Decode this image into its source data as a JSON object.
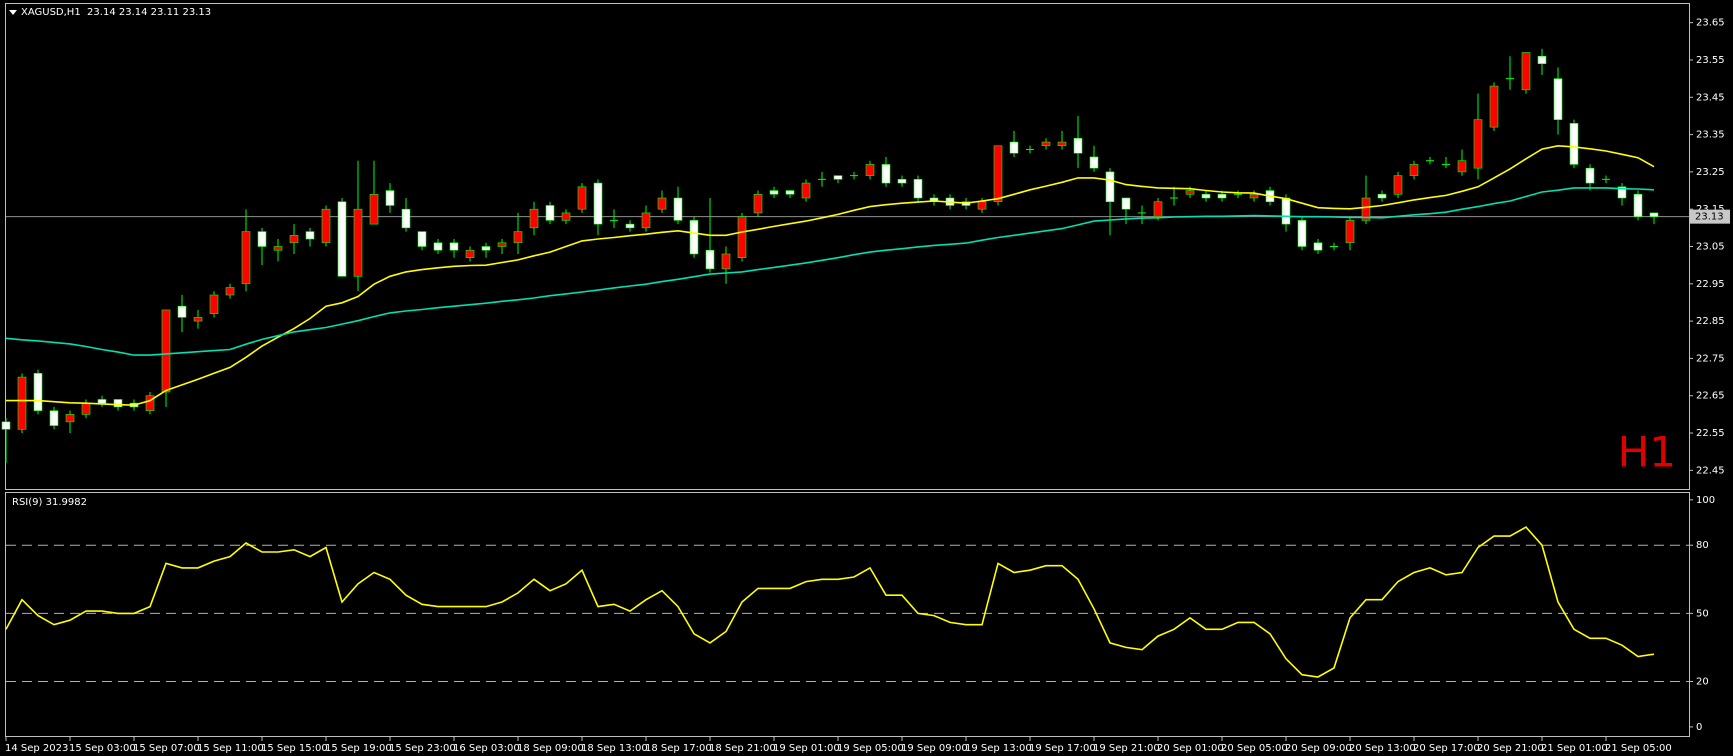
{
  "chart_data": [
    {
      "type": "candlestick",
      "title": "XAGUSD,H1  23.14 23.14 23.11 23.13",
      "annotation": "H1",
      "categories": [
        "14 Sep 2023",
        null,
        null,
        null,
        "15 Sep 03:00",
        null,
        null,
        null,
        "15 Sep 07:00",
        null,
        null,
        null,
        "15 Sep 11:00",
        null,
        null,
        null,
        "15 Sep 15:00",
        null,
        null,
        null,
        "15 Sep 19:00",
        null,
        null,
        null,
        "15 Sep 23:00",
        null,
        null,
        null,
        "16 Sep 03:00",
        null,
        null,
        null,
        "18 Sep 09:00",
        null,
        null,
        null,
        "18 Sep 13:00",
        null,
        null,
        null,
        "18 Sep 17:00",
        null,
        null,
        null,
        "18 Sep 21:00",
        null,
        null,
        null,
        "19 Sep 01:00",
        null,
        null,
        null,
        "19 Sep 05:00",
        null,
        null,
        null,
        "19 Sep 09:00",
        null,
        null,
        null,
        "19 Sep 13:00",
        null,
        null,
        null,
        "19 Sep 17:00",
        null,
        null,
        null,
        "19 Sep 21:00",
        null,
        null,
        null,
        "20 Sep 01:00",
        null,
        null,
        null,
        "20 Sep 05:00",
        null,
        null,
        null,
        "20 Sep 09:00",
        null,
        null,
        null,
        "20 Sep 13:00",
        null,
        null,
        null,
        "20 Sep 17:00",
        null,
        null,
        null,
        "20 Sep 21:00",
        null,
        null,
        null,
        "21 Sep 01:00",
        null,
        null,
        null,
        "21 Sep 05:00",
        null,
        null,
        null
      ],
      "open": [
        22.58,
        22.56,
        22.71,
        22.61,
        22.58,
        22.6,
        22.64,
        22.64,
        22.63,
        22.61,
        22.66,
        22.89,
        22.85,
        22.87,
        22.92,
        22.95,
        23.09,
        23.04,
        23.06,
        23.09,
        23.06,
        23.17,
        22.97,
        23.11,
        23.2,
        23.15,
        23.09,
        23.06,
        23.06,
        23.02,
        23.05,
        23.05,
        23.06,
        23.1,
        23.16,
        23.12,
        23.15,
        23.22,
        23.12,
        23.11,
        23.1,
        23.15,
        23.18,
        23.12,
        23.04,
        22.99,
        23.02,
        23.14,
        23.2,
        23.2,
        23.18,
        23.23,
        23.24,
        23.24,
        23.24,
        23.27,
        23.23,
        23.23,
        23.18,
        23.18,
        23.17,
        23.15,
        23.17,
        23.33,
        23.31,
        23.32,
        23.32,
        23.34,
        23.29,
        23.25,
        23.18,
        23.14,
        23.13,
        23.18,
        23.19,
        23.19,
        23.19,
        23.19,
        23.18,
        23.2,
        23.18,
        23.12,
        23.06,
        23.05,
        23.06,
        23.12,
        23.19,
        23.19,
        23.24,
        23.28,
        23.27,
        23.25,
        23.26,
        23.37,
        23.5,
        23.47,
        23.56,
        23.5,
        23.38,
        23.26,
        23.23,
        23.21,
        23.19,
        23.14
      ],
      "high": [
        22.59,
        22.71,
        22.72,
        22.62,
        22.61,
        22.64,
        22.65,
        22.64,
        22.64,
        22.66,
        22.88,
        22.92,
        22.88,
        22.93,
        22.95,
        23.15,
        23.1,
        23.07,
        23.11,
        23.1,
        23.16,
        23.18,
        23.28,
        23.28,
        23.22,
        23.18,
        23.09,
        23.07,
        23.07,
        23.05,
        23.06,
        23.07,
        23.14,
        23.17,
        23.17,
        23.15,
        23.22,
        23.23,
        23.15,
        23.12,
        23.16,
        23.2,
        23.21,
        23.13,
        23.18,
        23.05,
        23.14,
        23.2,
        23.21,
        23.2,
        23.23,
        23.25,
        23.24,
        23.25,
        23.28,
        23.29,
        23.24,
        23.24,
        23.19,
        23.19,
        23.18,
        23.18,
        23.32,
        23.36,
        23.32,
        23.34,
        23.36,
        23.4,
        23.32,
        23.26,
        23.18,
        23.16,
        23.18,
        23.21,
        23.21,
        23.2,
        23.2,
        23.2,
        23.2,
        23.21,
        23.19,
        23.13,
        23.07,
        23.06,
        23.13,
        23.24,
        23.2,
        23.25,
        23.28,
        23.29,
        23.29,
        23.31,
        23.46,
        23.49,
        23.56,
        23.57,
        23.58,
        23.53,
        23.39,
        23.27,
        23.24,
        23.22,
        23.2,
        23.14
      ],
      "low": [
        22.47,
        22.55,
        22.6,
        22.56,
        22.55,
        22.59,
        22.62,
        22.61,
        22.61,
        22.6,
        22.62,
        22.82,
        22.83,
        22.86,
        22.91,
        22.93,
        23.0,
        23.01,
        23.03,
        23.05,
        23.05,
        22.97,
        22.93,
        23.11,
        23.14,
        23.09,
        23.04,
        23.03,
        23.02,
        23.01,
        23.02,
        23.03,
        23.03,
        23.08,
        23.11,
        23.11,
        23.14,
        23.08,
        23.1,
        23.09,
        23.09,
        23.14,
        23.11,
        23.02,
        22.98,
        22.95,
        23.01,
        23.13,
        23.18,
        23.18,
        23.17,
        23.21,
        23.22,
        23.23,
        23.23,
        23.21,
        23.21,
        23.17,
        23.16,
        23.15,
        23.15,
        23.14,
        23.16,
        23.29,
        23.3,
        23.31,
        23.31,
        23.26,
        23.25,
        23.08,
        23.11,
        23.11,
        23.12,
        23.16,
        23.18,
        23.17,
        23.17,
        23.18,
        23.17,
        23.16,
        23.09,
        23.04,
        23.03,
        23.04,
        23.04,
        23.11,
        23.17,
        23.18,
        23.23,
        23.27,
        23.26,
        23.24,
        23.23,
        23.36,
        23.47,
        23.46,
        23.51,
        23.35,
        23.26,
        23.2,
        23.22,
        23.16,
        23.12,
        23.11
      ],
      "close": [
        22.56,
        22.7,
        22.61,
        22.57,
        22.6,
        22.63,
        22.63,
        22.62,
        22.62,
        22.65,
        22.88,
        22.86,
        22.86,
        22.92,
        22.94,
        23.09,
        23.05,
        23.05,
        23.08,
        23.07,
        23.15,
        22.97,
        23.15,
        23.19,
        23.16,
        23.1,
        23.05,
        23.04,
        23.04,
        23.04,
        23.04,
        23.06,
        23.09,
        23.15,
        23.12,
        23.14,
        23.21,
        23.11,
        23.12,
        23.1,
        23.14,
        23.18,
        23.12,
        23.03,
        22.99,
        23.03,
        23.13,
        23.19,
        23.19,
        23.19,
        23.22,
        23.23,
        23.23,
        23.24,
        23.27,
        23.22,
        23.22,
        23.18,
        23.17,
        23.16,
        23.16,
        23.17,
        23.32,
        23.3,
        23.31,
        23.33,
        23.33,
        23.3,
        23.26,
        23.17,
        23.15,
        23.14,
        23.17,
        23.18,
        23.2,
        23.18,
        23.18,
        23.19,
        23.19,
        23.17,
        23.11,
        23.05,
        23.04,
        23.05,
        23.12,
        23.18,
        23.18,
        23.24,
        23.27,
        23.28,
        23.27,
        23.28,
        23.39,
        23.48,
        23.5,
        23.57,
        23.54,
        23.39,
        23.27,
        23.22,
        23.23,
        23.18,
        23.13,
        23.13
      ],
      "up_color": "#ff0000",
      "down_color": "#ffffff",
      "wick_color": "#00ff00",
      "lines": [
        {
          "color": "#ffff00",
          "values": [
            22.637,
            22.637,
            22.637,
            22.634,
            22.631,
            22.63,
            22.628,
            22.626,
            22.625,
            22.637,
            22.664,
            22.679,
            22.694,
            22.71,
            22.726,
            22.753,
            22.783,
            22.807,
            22.83,
            22.857,
            22.89,
            22.899,
            22.916,
            22.949,
            22.97,
            22.982,
            22.988,
            22.993,
            22.997,
            22.999,
            23.0,
            23.007,
            23.014,
            23.025,
            23.035,
            23.05,
            23.065,
            23.07,
            23.074,
            23.079,
            23.083,
            23.088,
            23.092,
            23.086,
            23.08,
            23.08,
            23.089,
            23.096,
            23.104,
            23.111,
            23.118,
            23.127,
            23.136,
            23.147,
            23.157,
            23.162,
            23.166,
            23.169,
            23.172,
            23.169,
            23.166,
            23.172,
            23.178,
            23.19,
            23.202,
            23.212,
            23.222,
            23.234,
            23.234,
            23.228,
            23.216,
            23.211,
            23.207,
            23.206,
            23.205,
            23.2,
            23.196,
            23.194,
            23.193,
            23.185,
            23.178,
            23.166,
            23.154,
            23.152,
            23.151,
            23.155,
            23.16,
            23.167,
            23.175,
            23.181,
            23.187,
            23.198,
            23.21,
            23.234,
            23.258,
            23.285,
            23.311,
            23.32,
            23.317,
            23.312,
            23.306,
            23.297,
            23.288,
            23.264
          ]
        },
        {
          "color": "#00e0b0",
          "values": [
            22.804,
            22.8,
            22.797,
            22.793,
            22.789,
            22.782,
            22.774,
            22.767,
            22.759,
            22.759,
            22.762,
            22.765,
            22.768,
            22.771,
            22.774,
            22.788,
            22.801,
            22.811,
            22.821,
            22.827,
            22.833,
            22.842,
            22.851,
            22.862,
            22.872,
            22.877,
            22.881,
            22.886,
            22.89,
            22.894,
            22.898,
            22.903,
            22.907,
            22.912,
            22.918,
            22.923,
            22.928,
            22.933,
            22.939,
            22.944,
            22.949,
            22.956,
            22.962,
            22.969,
            22.976,
            22.979,
            22.982,
            22.988,
            22.994,
            23.0,
            23.006,
            23.013,
            23.02,
            23.028,
            23.035,
            23.04,
            23.044,
            23.049,
            23.053,
            23.056,
            23.059,
            23.067,
            23.074,
            23.08,
            23.086,
            23.092,
            23.098,
            23.108,
            23.118,
            23.121,
            23.124,
            23.126,
            23.127,
            23.129,
            23.13,
            23.131,
            23.131,
            23.132,
            23.133,
            23.132,
            23.131,
            23.13,
            23.13,
            23.129,
            23.128,
            23.128,
            23.127,
            23.131,
            23.135,
            23.138,
            23.142,
            23.15,
            23.157,
            23.165,
            23.172,
            23.184,
            23.196,
            23.201,
            23.207,
            23.207,
            23.207,
            23.205,
            23.204,
            23.202
          ]
        }
      ],
      "price_line": 23.13,
      "ylim": [
        22.4,
        23.7
      ],
      "yticks": [
        23.65,
        23.55,
        23.45,
        23.35,
        23.25,
        23.15,
        23.05,
        22.95,
        22.85,
        22.75,
        22.65,
        22.55,
        22.45
      ]
    },
    {
      "type": "line",
      "title": "RSI(9) 31.9982",
      "color": "#ffff00",
      "values": [
        43,
        56,
        49,
        45,
        47,
        51,
        51,
        50,
        50,
        53,
        72,
        70,
        70,
        73,
        75,
        81,
        77,
        77,
        78,
        75,
        79,
        55,
        63,
        68,
        65,
        58,
        54,
        53,
        53,
        53,
        53,
        55,
        59,
        65,
        60,
        63,
        69,
        53,
        54,
        51,
        56,
        60,
        53,
        41,
        37,
        42,
        55,
        61,
        61,
        61,
        64,
        65,
        65,
        66,
        70,
        58,
        58,
        50,
        49,
        46,
        45,
        45,
        72,
        68,
        69,
        71,
        71,
        65,
        52,
        37,
        35,
        34,
        40,
        43,
        48,
        43,
        43,
        46,
        46,
        41,
        30,
        23,
        22,
        26,
        48,
        56,
        56,
        64,
        68,
        70,
        67,
        68,
        79,
        84,
        84,
        88,
        80,
        55,
        43,
        39,
        39,
        36,
        31,
        31.9982
      ],
      "levels": [
        80,
        50,
        20
      ],
      "ylim": [
        -4,
        103
      ],
      "yticks": [
        100,
        80,
        50,
        20,
        0
      ]
    }
  ]
}
